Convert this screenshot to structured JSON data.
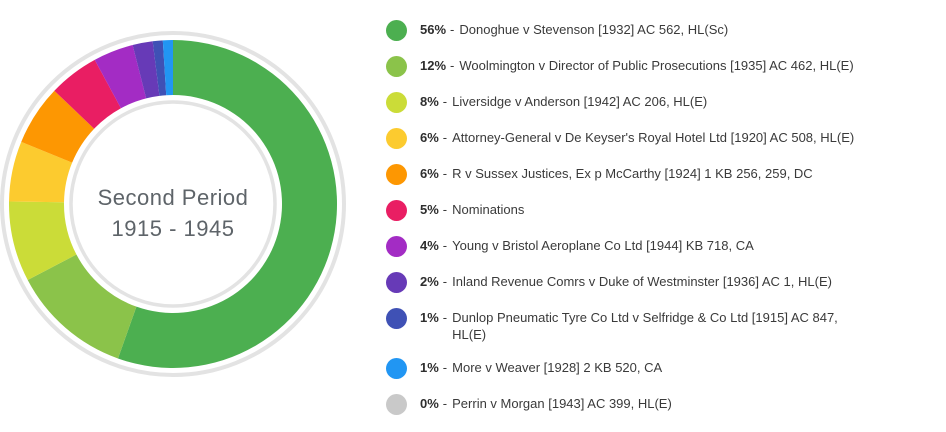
{
  "chart_data": {
    "type": "donut",
    "title": "Second Period",
    "subtitle": "1915 - 1945",
    "title_color": "#5e6469",
    "outline_color": "#e3e3e3",
    "start_angle_deg": -90,
    "direction": "clockwise",
    "legend_position": "right",
    "unit": "%",
    "slices": [
      {
        "pct": "56%",
        "value": 56,
        "label": "Donoghue v Stevenson [1932] AC 562, HL(Sc)",
        "color": "#4caf50"
      },
      {
        "pct": "12%",
        "value": 12,
        "label": "Woolmington v Director of Public Prosecutions [1935] AC 462, HL(E)",
        "color": "#8bc34a"
      },
      {
        "pct": "8%",
        "value": 8,
        "label": "Liversidge v Anderson [1942] AC 206, HL(E)",
        "color": "#cbdc38"
      },
      {
        "pct": "6%",
        "value": 6,
        "label": "Attorney-General v De Keyser's Royal Hotel Ltd [1920] AC 508, HL(E)",
        "color": "#fccb2f"
      },
      {
        "pct": "6%",
        "value": 6,
        "label": "R v Sussex Justices, Ex p McCarthy [1924] 1 KB 256, 259, DC",
        "color": "#fd9702"
      },
      {
        "pct": "5%",
        "value": 5,
        "label": "Nominations",
        "color": "#e91e63"
      },
      {
        "pct": "4%",
        "value": 4,
        "label": "Young v Bristol Aeroplane Co Ltd [1944] KB 718, CA",
        "color": "#a32cc4"
      },
      {
        "pct": "2%",
        "value": 2,
        "label": "Inland Revenue Comrs v Duke of Westminster [1936] AC 1, HL(E)",
        "color": "#673ab7"
      },
      {
        "pct": "1%",
        "value": 1,
        "label": "Dunlop Pneumatic Tyre Co Ltd v Selfridge & Co Ltd [1915] AC 847, HL(E)",
        "color": "#3f51b5"
      },
      {
        "pct": "1%",
        "value": 1,
        "label": "More v Weaver [1928] 2 KB 520, CA",
        "color": "#2196f3"
      },
      {
        "pct": "0%",
        "value": 0,
        "label": "Perrin v Morgan [1943] AC 399, HL(E)",
        "color": "#c9c9c9"
      }
    ]
  },
  "legend": {
    "separator": "-"
  }
}
